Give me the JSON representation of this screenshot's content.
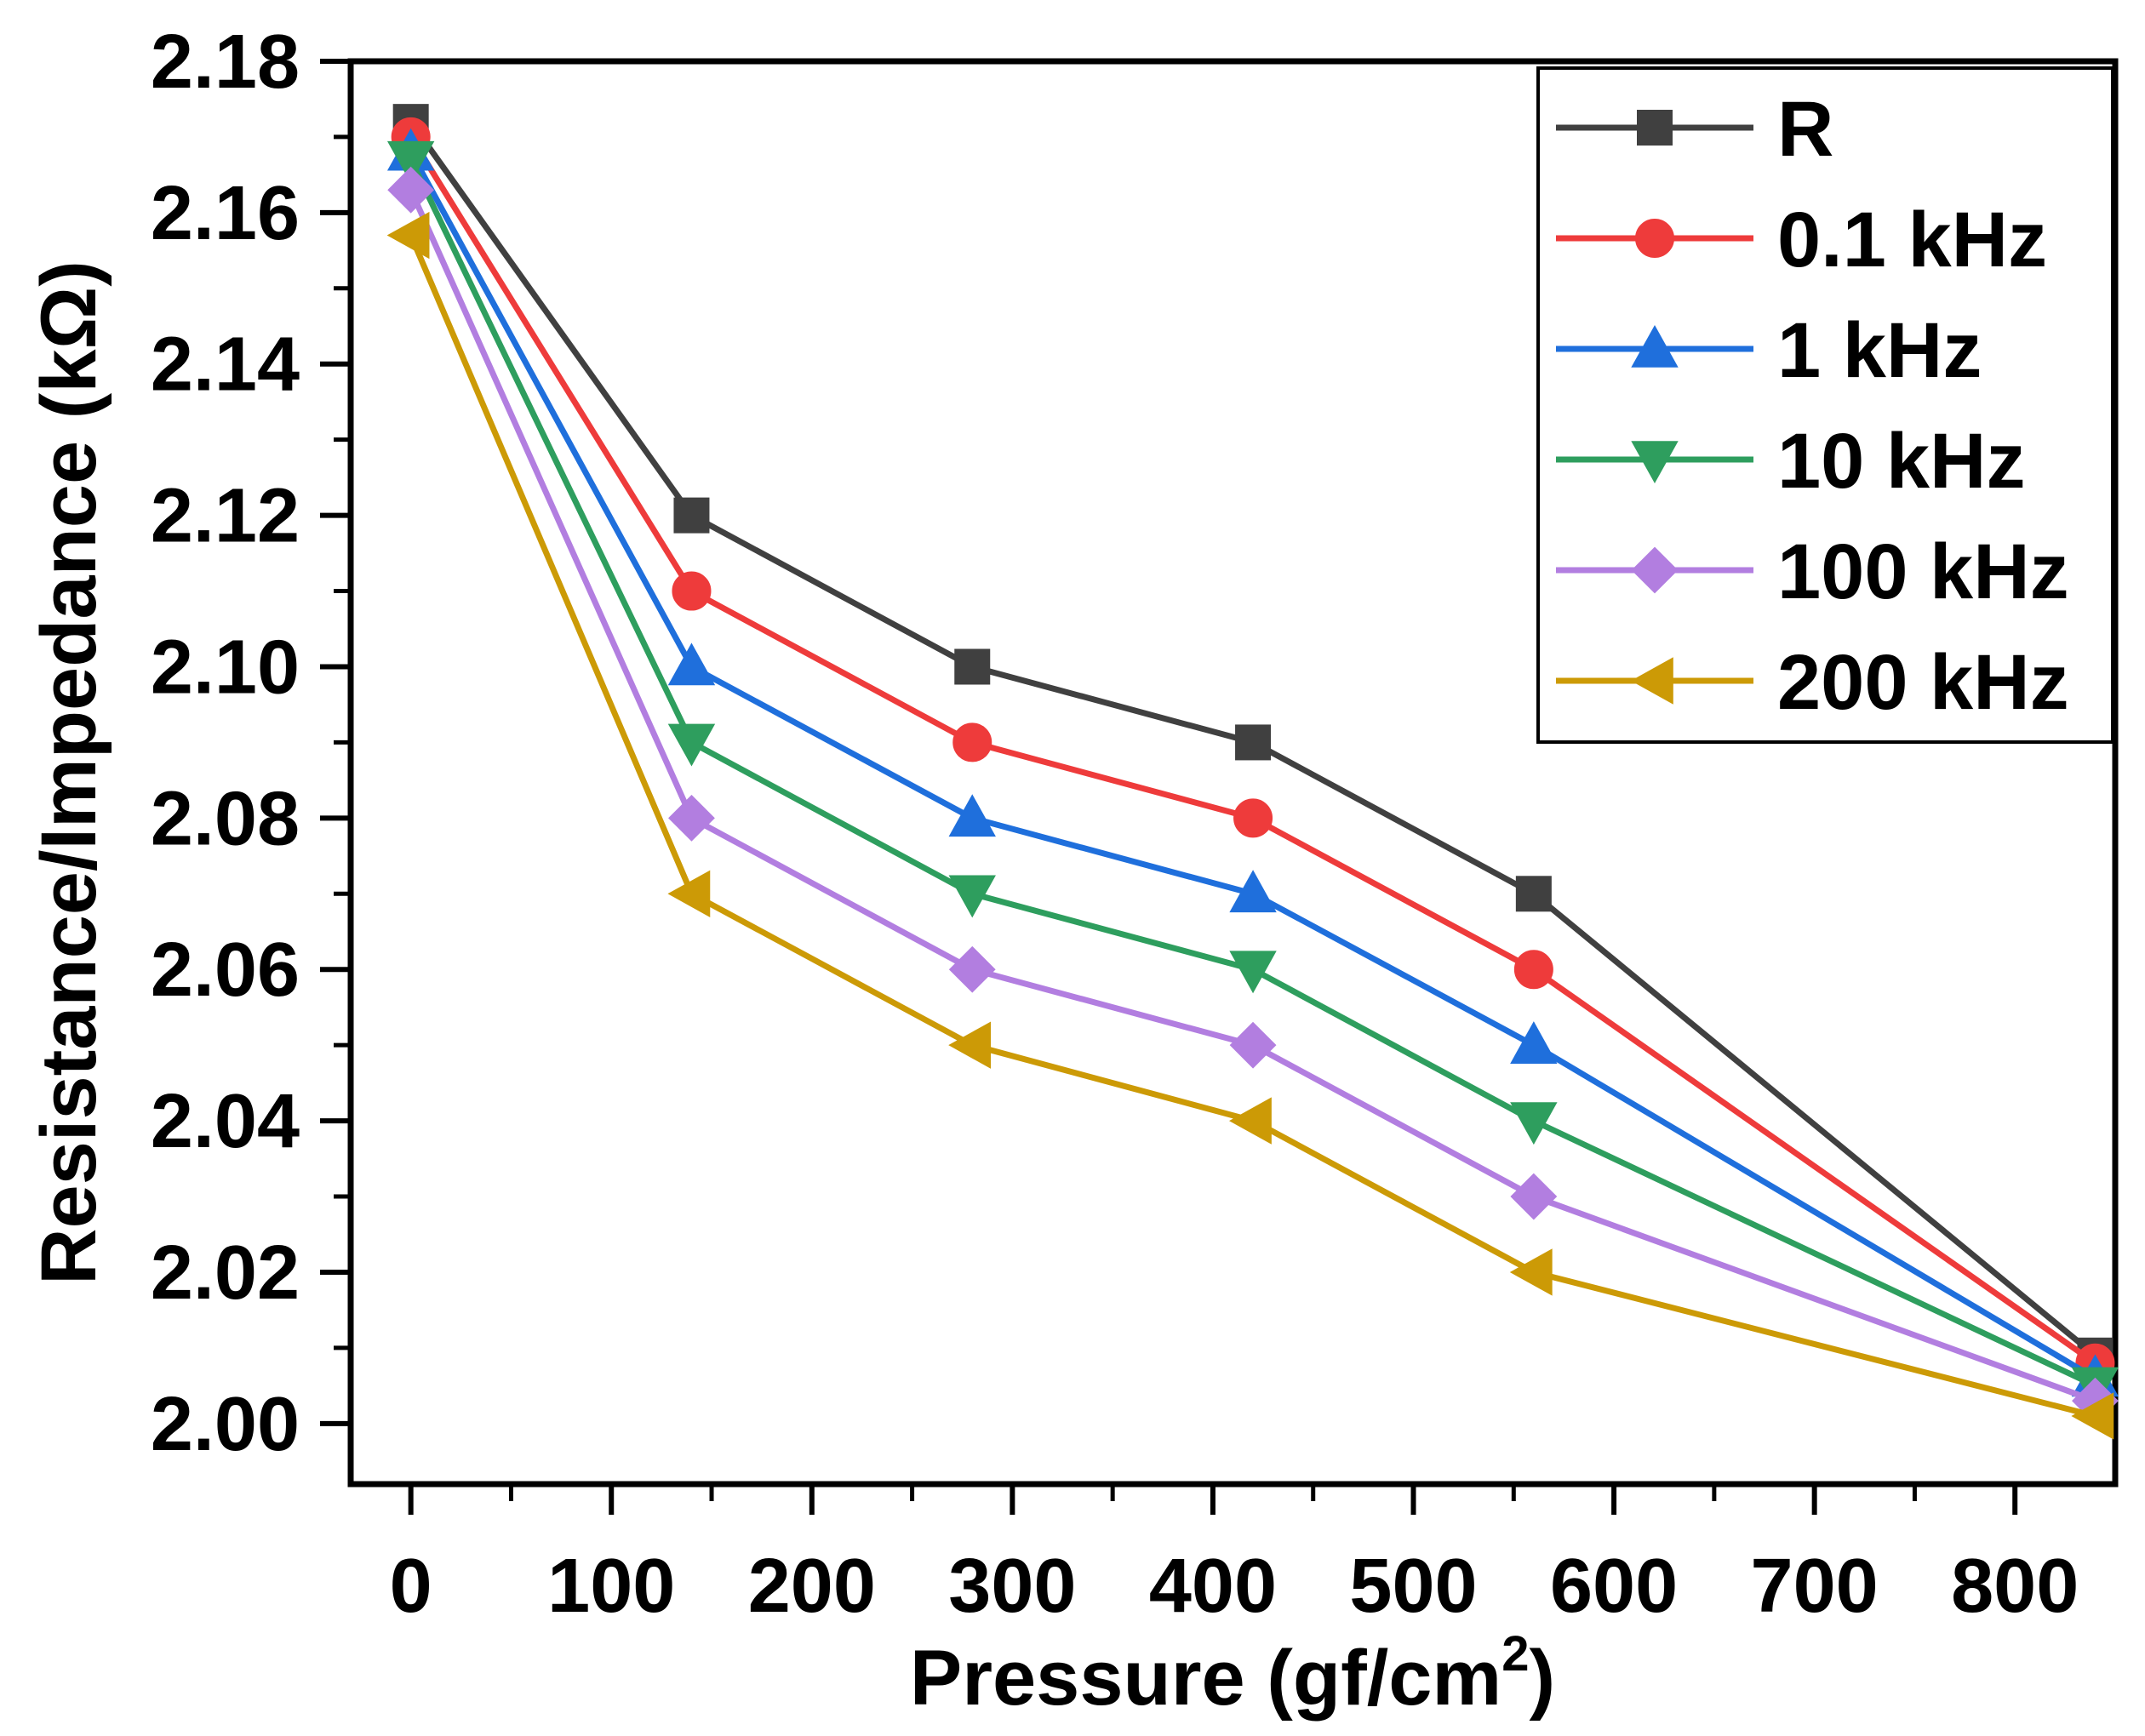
{
  "chart_data": {
    "type": "line",
    "xlabel_main": "Pressure (gf/cm",
    "xlabel_sup": "2",
    "xlabel_close": ")",
    "ylabel": "Resistance/Impedance (kΩ)",
    "x": [
      0,
      140,
      280,
      420,
      560,
      840
    ],
    "xlim": [
      -30,
      850
    ],
    "ylim": [
      1.992,
      2.18
    ],
    "xticks": [
      0,
      100,
      200,
      300,
      400,
      500,
      600,
      700,
      800
    ],
    "xtick_labels": [
      "0",
      "100",
      "200",
      "300",
      "400",
      "500",
      "600",
      "700",
      "800"
    ],
    "yticks": [
      2.0,
      2.02,
      2.04,
      2.06,
      2.08,
      2.1,
      2.12,
      2.14,
      2.16,
      2.18
    ],
    "ytick_labels": [
      "2.00",
      "2.02",
      "2.04",
      "2.06",
      "2.08",
      "2.10",
      "2.12",
      "2.14",
      "2.16",
      "2.18"
    ],
    "legend_position": "top-right",
    "series": [
      {
        "name": "R",
        "color": "#404040",
        "marker": "square",
        "values": [
          2.172,
          2.12,
          2.1,
          2.09,
          2.07,
          2.009
        ]
      },
      {
        "name": "0.1 kHz",
        "color": "#ee3b3b",
        "marker": "circle",
        "values": [
          2.17,
          2.11,
          2.09,
          2.08,
          2.06,
          2.008
        ]
      },
      {
        "name": "1 kHz",
        "color": "#1f6fdc",
        "marker": "triangle-up",
        "values": [
          2.168,
          2.1,
          2.08,
          2.07,
          2.05,
          2.006
        ]
      },
      {
        "name": "10 kHz",
        "color": "#2e9e5e",
        "marker": "triangle-down",
        "values": [
          2.167,
          2.09,
          2.07,
          2.06,
          2.04,
          2.005
        ]
      },
      {
        "name": "100 kHz",
        "color": "#b27ee0",
        "marker": "diamond",
        "values": [
          2.163,
          2.08,
          2.06,
          2.05,
          2.03,
          2.003
        ]
      },
      {
        "name": "200 kHz",
        "color": "#cc9a06",
        "marker": "triangle-left",
        "values": [
          2.157,
          2.07,
          2.05,
          2.04,
          2.02,
          2.001
        ]
      }
    ]
  }
}
